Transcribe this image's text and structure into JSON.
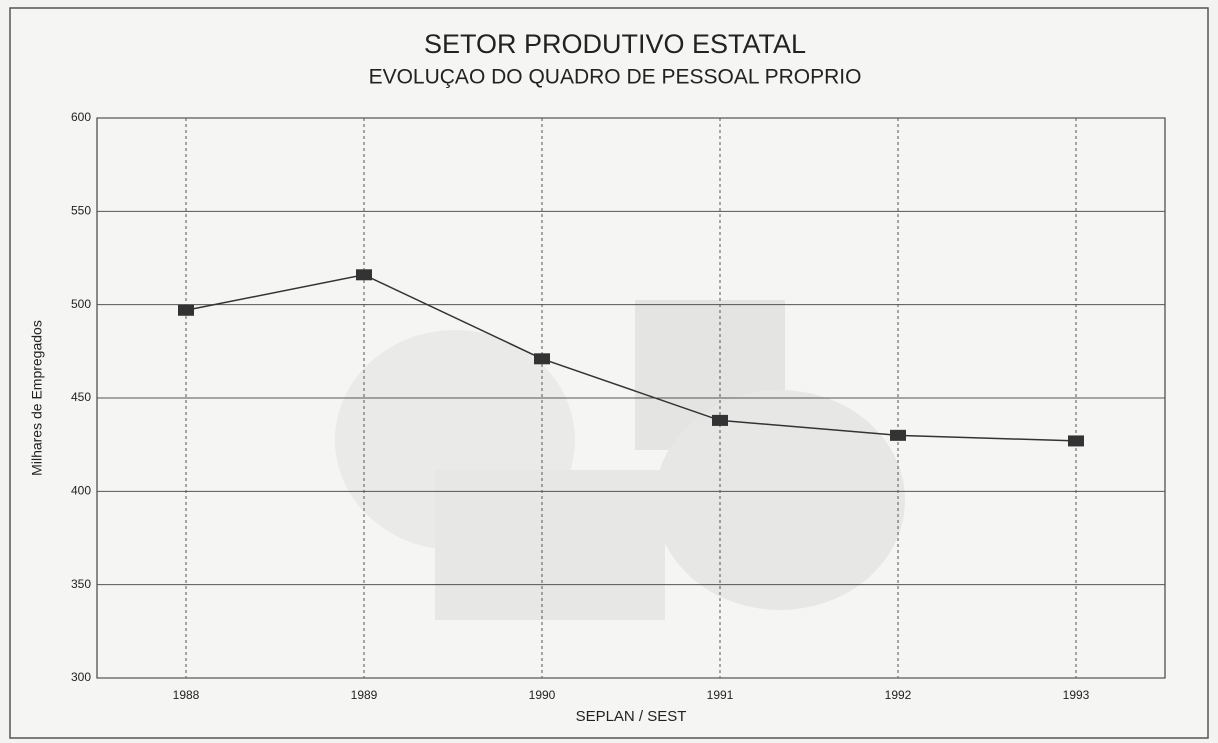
{
  "chart_data": {
    "type": "line",
    "title": "SETOR PRODUTIVO ESTATAL",
    "subtitle": "EVOLUÇAO DO QUADRO DE PESSOAL PROPRIO",
    "y_label": "Milhares de Empregados",
    "x_label": "SEPLAN / SEST",
    "categories": [
      "1988",
      "1989",
      "1990",
      "1991",
      "1992",
      "1993"
    ],
    "series": [
      {
        "color": "#333333",
        "values": [
          497,
          516,
          471,
          438,
          430,
          427
        ]
      }
    ],
    "ylim": [
      300,
      600
    ],
    "yticks": [
      300,
      350,
      400,
      450,
      500,
      550,
      600
    ],
    "grid": true
  }
}
